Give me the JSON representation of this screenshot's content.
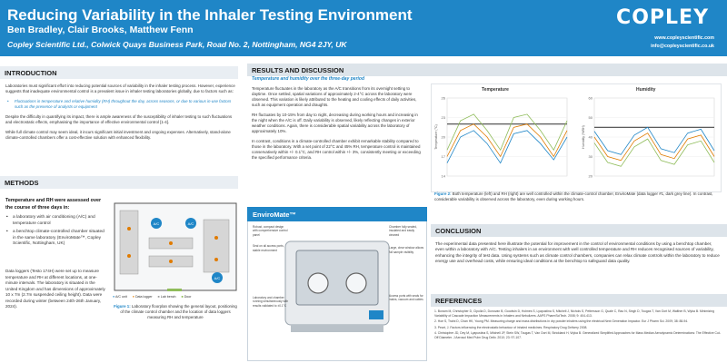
{
  "header": {
    "title": "Reducing Variability in the Inhaler Testing Environment",
    "authors": "Ben Bradley, Clair Brooks, Matthew Fenn",
    "affiliation": "Copley Scientific Ltd., Colwick Quays Business Park, Road No. 2, Nottingham, NG4 2JY, UK",
    "logo": "COPLEY",
    "website": "www.copleyscientific.com",
    "email": "info@copleyscientific.co.uk"
  },
  "intro": {
    "heading": "INTRODUCTION",
    "p1": "Laboratories must significant effort into reducing potential sources of variability in the inhaler testing process. However, experience suggests that inadequate environmental control is a prevalent issue in inhaler testing laboratories globally, due to factors such as:",
    "bullet": "Fluctuations in temperature and relative humidity (RH) throughout the day, across seasons, or due to various in-use factors such as the presence of analysts or equipment",
    "p2": "Despite the difficulty in quantifying its impact, there is ample awareness of the susceptibility of inhaler testing to such fluctuations and electrostatic effects, emphasising the importance of effective environmental control [1-4].",
    "p3": "While full climate control may seem ideal, it incurs significant initial investment and ongoing expenses. Alternatively, stand-alone climate-controlled chambers offer a cost-effective solution with enhanced flexibility."
  },
  "methods": {
    "heading": "METHODS",
    "intro": "Temperature and RH were assessed over the course of three days in:",
    "items": [
      "a laboratory with air conditioning (A/C) and temperature control",
      "a benchtop climate-controlled chamber situated in the same laboratory (EnviroMate™, Copley Scientific, Nottingham, UK)"
    ],
    "body": "Data loggers (Testo 174H) were set up to measure temperature and RH at different locations, at one-minute intervals. The laboratory is situated in the United Kingdom and has dimensions of approximately 10 x 7m (2.7m suspended ceiling height). Data were recorded during winter (between 24th-26th January, 2024).",
    "fig1_caption_label": "Figure 1:",
    "fig1_caption": "Laboratory floorplan showing the general layout, positioning of the climate control chamber and the location of data loggers measuring RH and temperature",
    "floorplan_labels": [
      "A/C",
      "A/C",
      "A/C"
    ],
    "legend": [
      "A/C unit",
      "Data logger",
      "Lab bench",
      "Door"
    ]
  },
  "results": {
    "heading": "RESULTS AND DISCUSSION",
    "subheading": "Temperature and humidity over the three-day period",
    "p1": "Temperature fluctuates in the laboratory as the A/C transitions from its overnight setting to daytime. Once settled, spatial variations of approximately 2-4°C across the laboratory were observed. This variation is likely attributed to the heating and cooling effects of daily activities, such as equipment operation and draughts.",
    "p2": "RH fluctuates by 10-15% from day to night, decreasing during working hours and increasing in the night when the A/C is off. Daily variability is observed, likely reflecting changes in exterior weather conditions. Again, there is considerable spatial variability across the laboratory of approximately 10%.",
    "p3": "In contrast, conditions in a climate-controlled chamber exhibit remarkable stability compared to those in the laboratory. With a set point of 22°C and 45% RH, temperature control is maintained conservatively within +/- 0.1°C, and RH control within +/- 3%, consistently meeting or exceeding the specified performance criteria.",
    "chart_titles": [
      "Temperature",
      "Humidity"
    ],
    "fig2_caption_label": "Figure 2:",
    "fig2_caption": "Both temperature (left) and RH (right) are well controlled within the climate-control chamber, EnviroMate (data logger #1, dark grey line). In contrast, considerable variability is observed across the laboratory, even during working hours."
  },
  "chart_data": [
    {
      "type": "line",
      "title": "Temperature",
      "ylabel": "Temperature (°C)",
      "ylim": [
        14,
        26
      ],
      "series": [
        {
          "values": [
            22,
            22,
            22,
            22,
            22,
            22,
            22,
            22,
            22,
            22
          ]
        },
        {
          "values": [
            17,
            21,
            22,
            20,
            17,
            21.5,
            22,
            20,
            17,
            21
          ]
        },
        {
          "values": [
            16,
            20,
            21,
            19,
            16,
            20.5,
            21,
            19,
            16.5,
            20
          ]
        },
        {
          "values": [
            18,
            22.5,
            23.5,
            21,
            18,
            23,
            23.5,
            21,
            18,
            22.5
          ]
        }
      ]
    },
    {
      "type": "line",
      "title": "Humidity",
      "ylabel": "Humidity (%RH)",
      "ylim": [
        20,
        60
      ],
      "series": [
        {
          "values": [
            45,
            45,
            45,
            45,
            45,
            45,
            45,
            45,
            45,
            45
          ]
        },
        {
          "values": [
            40,
            30,
            28,
            38,
            42,
            31,
            29,
            39,
            41,
            30
          ]
        },
        {
          "values": [
            43,
            33,
            31,
            41,
            45,
            34,
            32,
            42,
            44,
            33
          ]
        },
        {
          "values": [
            37,
            27,
            25,
            35,
            39,
            28,
            26,
            36,
            38,
            27
          ]
        }
      ]
    }
  ],
  "enviromate": {
    "heading": "EnviroMate™",
    "callouts_left": [
      "Robust, compact design with comprehensive control panel",
      "Seal on all access ports, stable environment",
      "Laboratory and chamber running simultaneously with results validated to ±0.1°C"
    ],
    "callouts_right": [
      "Chamber fully sealed, insulated and easily cleaned",
      "Large, clear window allows full sample visibility",
      "Access ports with seals for mains, vacuum and cables"
    ]
  },
  "conclusion": {
    "heading": "CONCLUSION",
    "text": "The experimental data presented here illustrate the potential for improvement in the control of environmental conditions by using a benchtop chamber, even within a laboratory with A/C. Testing inhalers in an environment with well controlled temperature and RH reduces recognised sources of variability, enhancing the integrity of test data. Using systems such as climate control chambers, companies can relax climate controls within the laboratory to reduce energy use and overhead costs, while ensuring ideal conditions at the benchtop to safeguard data quality."
  },
  "references": {
    "heading": "REFERENCES",
    "items": [
      "1. Bonam M, Christopher D, Cipolla D, Donovan B, Goodwin D, Holmes S, Lyapustina S, Mitchell J, Nichols S, Pettersson G, Quale C, Rao N, Singh D, Tougas T, Van Oort M, Walther B, Wyka B. Minimizing Variability of Cascade Impaction Measurements in Inhalers and Nebulizers. AAPS PharmSciTech. 2008; 9: 404-413.",
      "2. Hoe S, Traini D, Chan HK, Young PM. Measuring charge and mass distributions in dry powder inhalers using the electrical Next Generation Impactor. Eur J Pharm Sci. 2009; 38: 88-94.",
      "3. Peart, J. Factors influencing the electrostatic behaviour of inhaled medicines. Respiratory Drug Delivery 2008.",
      "4. Christopher JD, Dey M, Lyapustina S, Mitchell JP, Stein SW, Tougas T, Van Oort M, Strickland H, Wyka B. Generalized Simplified Approaches for Mass Median Aerodynamic Determinations: The Effective Cut-Off Diameter. J Aerosol Med Pulm Drug Deliv. 2010; 23: 97-107."
    ]
  }
}
